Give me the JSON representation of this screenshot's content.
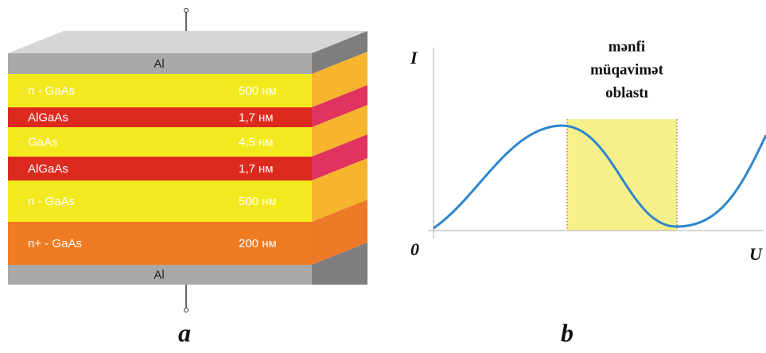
{
  "structure": {
    "layers": [
      {
        "name": "Al"
      },
      {
        "name": "n - GaAs",
        "thickness": "500 нм"
      },
      {
        "name": "AlGaAs",
        "thickness": "1,7 нм"
      },
      {
        "name": "GaAs",
        "thickness": "4,5 нм"
      },
      {
        "name": "AlGaAs",
        "thickness": "1,7 нм"
      },
      {
        "name": "n - GaAs",
        "thickness": "500 нм"
      },
      {
        "name": "n+ - GaAs",
        "thickness": "200 нм"
      },
      {
        "name": "Al"
      }
    ],
    "caption": "a"
  },
  "graph": {
    "y_label": "I",
    "x_label": "U",
    "origin": "0",
    "region_label": [
      "mənfi",
      "müqavimət",
      "oblastı"
    ],
    "caption": "b"
  }
}
